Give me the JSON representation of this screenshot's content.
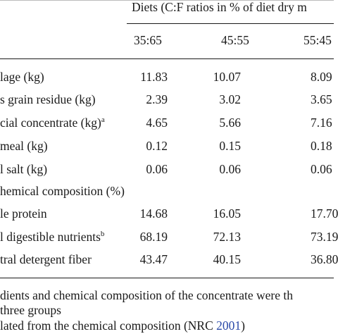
{
  "table": {
    "group_header": "Diets (C:F ratios in % of diet dry m",
    "columns": [
      "35:65",
      "45:55",
      "55:45"
    ],
    "rows": [
      {
        "label": "lage (kg)",
        "sup": "",
        "values": [
          "11.83",
          "10.07",
          "8.09"
        ]
      },
      {
        "label": "s grain residue (kg)",
        "sup": "",
        "values": [
          "2.39",
          "3.02",
          "3.65"
        ]
      },
      {
        "label": "cial concentrate (kg)",
        "sup": "a",
        "values": [
          "4.65",
          "5.66",
          "7.16"
        ]
      },
      {
        "label": "meal (kg)",
        "sup": "",
        "values": [
          "0.12",
          "0.15",
          "0.18"
        ]
      },
      {
        "label": "l salt (kg)",
        "sup": "",
        "values": [
          "0.06",
          "0.06",
          "0.06"
        ]
      },
      {
        "label": "hemical composition (%)",
        "sup": "",
        "values": [
          "",
          "",
          ""
        ]
      },
      {
        "label": "le protein",
        "sup": "",
        "values": [
          "14.68",
          "16.05",
          "17.70"
        ]
      },
      {
        "label": "l digestible nutrients",
        "sup": "b",
        "values": [
          "68.19",
          "72.13",
          "73.19"
        ]
      },
      {
        "label": "tral detergent fiber",
        "sup": "",
        "values": [
          "43.47",
          "40.15",
          "36.80"
        ]
      }
    ]
  },
  "footnotes": {
    "line1": "dients and chemical composition of the concentrate were th",
    "line2": "three groups",
    "line3_prefix": "lated from the chemical composition (NRC ",
    "line3_cite": "2001",
    "line3_suffix": ")"
  }
}
